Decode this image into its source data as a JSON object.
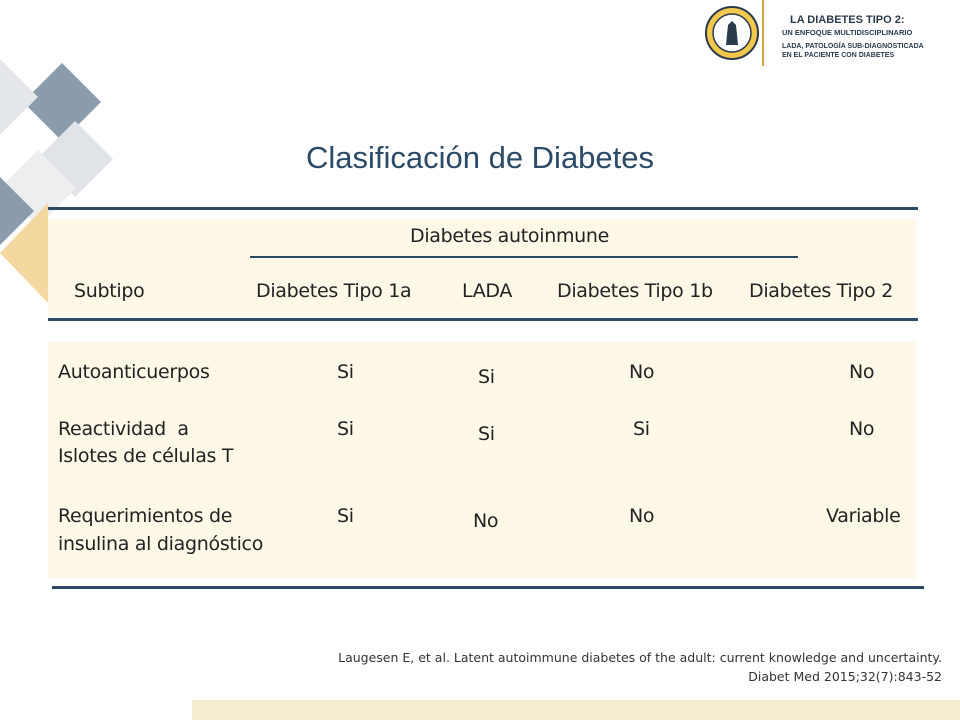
{
  "slide": {
    "title": "Clasificación de Diabetes",
    "colors": {
      "title": "#2b4a66",
      "rules": "#2b4a66",
      "band": "#fdf8e8",
      "deco_slate": "#8a9bab",
      "deco_light": "#e0e4e8",
      "deco_gold": "#f3d9a0"
    }
  },
  "logo": {
    "seal_icon": "university-seal-icon",
    "line1": "LA DIABETES TIPO 2:",
    "line2": "UN ENFOQUE MULTIDISCIPLINARIO",
    "line3": "LADA, PATOLOGÍA SUB-DIAGNOSTICADA",
    "line4": "EN EL PACIENTE CON DIABETES"
  },
  "table": {
    "group_header": "Diabetes autoinmune",
    "headers": [
      "Subtipo",
      "Diabetes Tipo 1a",
      "LADA",
      "Diabetes Tipo 1b",
      "Diabetes Tipo 2"
    ],
    "rows": [
      {
        "label_lines": [
          "Autoanticuerpos"
        ],
        "values": [
          "Si",
          "Si",
          "No",
          "No"
        ]
      },
      {
        "label_lines": [
          "Reactividad  a",
          "Islotes de células T"
        ],
        "values": [
          "Si",
          "Si",
          "Si",
          "No"
        ]
      },
      {
        "label_lines": [
          "Requerimientos de",
          "insulina al diagnóstico"
        ],
        "values": [
          "Si",
          "No",
          "No",
          "Variable"
        ]
      }
    ]
  },
  "reference": {
    "line1": "Laugesen E, et al. Latent autoimmune diabetes of the adult: current knowledge and uncertainty.",
    "line2": "Diabet Med 2015;32(7):843-52"
  }
}
